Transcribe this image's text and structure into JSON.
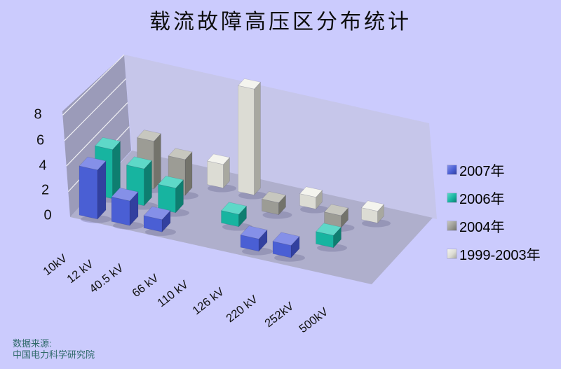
{
  "title": "载流故障高压区分布统计",
  "background_color": "#CBCBFD",
  "source": {
    "line1": "数据来源:",
    "line2": "中国电力科学研究院",
    "color": "#2F6A6A"
  },
  "chart_data": {
    "type": "bar",
    "projection": "3d",
    "title": "载流故障高压区分布统计",
    "categories": [
      "10kV",
      "12 kV",
      "40.5 kV",
      "66 kV",
      "110 kV",
      "126 kV",
      "220 kV",
      "252kV",
      "500kV"
    ],
    "y_ticks": [
      0,
      2,
      4,
      6,
      8
    ],
    "ylim": [
      0,
      8
    ],
    "grid": true,
    "legend_position": "right",
    "series": [
      {
        "name": "2007年",
        "values": [
          4,
          2,
          1,
          0,
          0,
          1,
          1,
          0,
          0
        ],
        "colors": {
          "front": "#4A5FD4",
          "side": "#32409F",
          "top": "#8590E8"
        }
      },
      {
        "name": "2006年",
        "values": [
          4,
          3,
          2,
          0,
          1,
          0,
          0,
          1,
          0
        ],
        "colors": {
          "front": "#17B4A0",
          "side": "#0E7E70",
          "top": "#5ED8C8"
        }
      },
      {
        "name": "2004年",
        "values": [
          0,
          4,
          3,
          0,
          0,
          1,
          0,
          1,
          0
        ],
        "colors": {
          "front": "#9C9C95",
          "side": "#73736B",
          "top": "#C7C7BF"
        }
      },
      {
        "name": "1999-2003年",
        "values": [
          0,
          0,
          0,
          2,
          9,
          0,
          1,
          0,
          1
        ],
        "colors": {
          "front": "#DCDCD4",
          "side": "#A8A8A0",
          "top": "#F4F4EE"
        }
      }
    ],
    "scene_colors": {
      "left_wall": "#9B9BB9",
      "back_wall": "#C5C5E6",
      "floor": "#AFAFCC",
      "gridline": "#FFFFFF",
      "shadow": "#62628C"
    }
  }
}
